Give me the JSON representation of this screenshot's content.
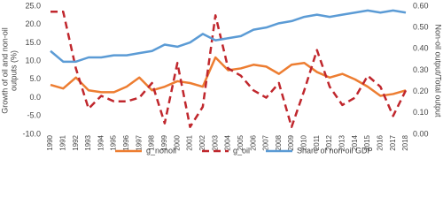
{
  "chart_data": {
    "type": "line",
    "y_label": [
      "Growth of oil and non-oil",
      "outputs (%)"
    ],
    "y2_label": "Non-oil output/Total output",
    "categories": [
      "1990",
      "1991",
      "1992",
      "1993",
      "1994",
      "1995",
      "1996",
      "1997",
      "1998",
      "1999",
      "2000",
      "2001",
      "2002",
      "2003",
      "2004",
      "2005",
      "2006",
      "2007",
      "2008",
      "2009",
      "2010",
      "2011",
      "2012",
      "2013",
      "2014",
      "2015",
      "2016",
      "2017",
      "2018"
    ],
    "series": [
      {
        "name": "g_nonoil",
        "color": "#ed7d31",
        "dash": false,
        "values": [
          3.5,
          2.5,
          5.5,
          2.0,
          1.5,
          1.5,
          3.0,
          5.5,
          2.0,
          3.0,
          4.5,
          4.0,
          3.0,
          11.0,
          7.5,
          8.0,
          9.0,
          8.5,
          6.5,
          9.0,
          9.5,
          7.0,
          5.5,
          6.5,
          5.0,
          3.0,
          0.5,
          1.0,
          2.0
        ]
      },
      {
        "name": "g_oil",
        "color": "#c0272d",
        "dash": true,
        "values": [
          23.5,
          23.5,
          8,
          -3,
          0.5,
          -1,
          -1,
          0,
          4,
          -7,
          9.5,
          -8,
          -2.5,
          22.5,
          8,
          6,
          2,
          0,
          4,
          -8,
          2,
          13,
          3,
          -2,
          0,
          6,
          3,
          -5,
          2
        ]
      },
      {
        "name": "Share of non-oil GDP",
        "color": "#5b9bd5",
        "dash": false,
        "axis": "y2",
        "values": [
          0.39,
          0.34,
          0.34,
          0.36,
          0.36,
          0.37,
          0.37,
          0.38,
          0.39,
          0.42,
          0.41,
          0.43,
          0.47,
          0.44,
          0.45,
          0.46,
          0.49,
          0.5,
          0.52,
          0.53,
          0.55,
          0.56,
          0.55,
          0.56,
          0.57,
          0.58,
          0.57,
          0.58,
          0.57
        ]
      }
    ],
    "ylim": [
      -10,
      25
    ],
    "yticks": [
      {
        "value": -10,
        "label": "-10.0"
      },
      {
        "value": -5,
        "label": "-5.0"
      },
      {
        "value": 0,
        "label": "0.0"
      },
      {
        "value": 5,
        "label": "5.0"
      },
      {
        "value": 10,
        "label": "10.0"
      },
      {
        "value": 15,
        "label": "15.0"
      },
      {
        "value": 20,
        "label": "20.0"
      },
      {
        "value": 25,
        "label": "25.0"
      }
    ],
    "y2lim": [
      0,
      0.6
    ],
    "y2ticks": [
      {
        "value": 0,
        "label": "0.00"
      },
      {
        "value": 0.1,
        "label": "0.10"
      },
      {
        "value": 0.2,
        "label": "0.20"
      },
      {
        "value": 0.3,
        "label": "0.30"
      },
      {
        "value": 0.4,
        "label": "0.40"
      },
      {
        "value": 0.5,
        "label": "0.50"
      },
      {
        "value": 0.6,
        "label": "0.60"
      }
    ],
    "grid": false,
    "legend": "bottom"
  }
}
